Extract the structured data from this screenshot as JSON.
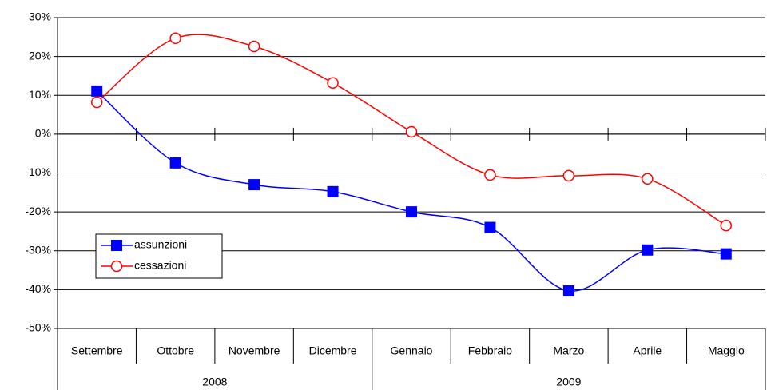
{
  "chart_data": {
    "type": "line",
    "categories": [
      "Settembre",
      "Ottobre",
      "Novembre",
      "Dicembre",
      "Gennaio",
      "Febbraio",
      "Marzo",
      "Aprile",
      "Maggio"
    ],
    "groups": [
      {
        "label": "2008",
        "count": 4
      },
      {
        "label": "2009",
        "count": 5
      }
    ],
    "series": [
      {
        "name": "assunzioni",
        "color": "#0000ff",
        "marker": "square",
        "values": [
          11.1,
          -7.4,
          -13,
          -14.8,
          -20,
          -24,
          -40.3,
          -29.8,
          -30.8
        ]
      },
      {
        "name": "cessazioni",
        "color": "#ff0000",
        "marker": "circle",
        "values": [
          8.2,
          24.7,
          22.6,
          13.2,
          0.6,
          -10.5,
          -10.7,
          -11.5,
          -23.5
        ]
      }
    ],
    "ylim": [
      -50,
      30
    ],
    "yticks": [
      {
        "value": -50,
        "label": "-50%"
      },
      {
        "value": -40,
        "label": "-40%"
      },
      {
        "value": -30,
        "label": "-30%"
      },
      {
        "value": -20,
        "label": "-20%"
      },
      {
        "value": -10,
        "label": "-10%"
      },
      {
        "value": 0,
        "label": "0%"
      },
      {
        "value": 10,
        "label": "10%"
      },
      {
        "value": 20,
        "label": "20%"
      },
      {
        "value": 30,
        "label": "30%"
      }
    ],
    "grid": true,
    "smooth": true
  }
}
